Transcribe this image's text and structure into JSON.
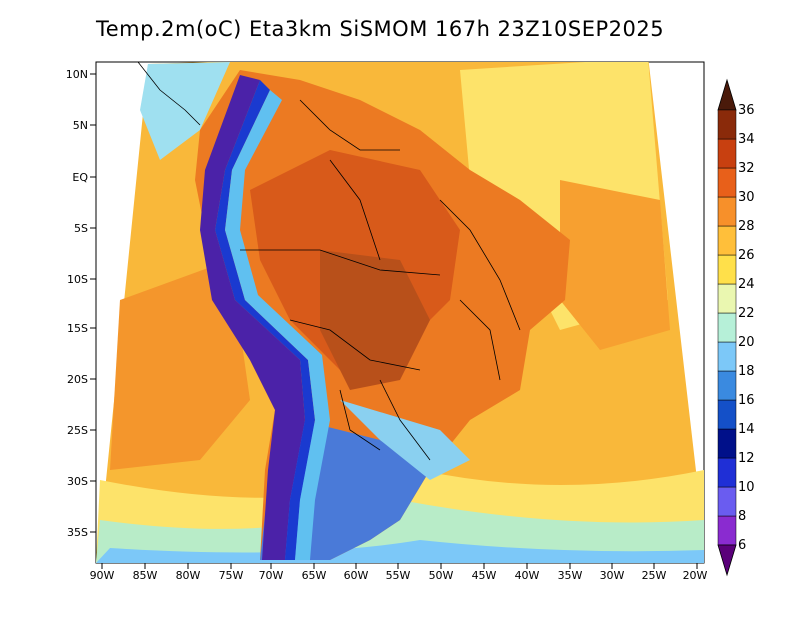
{
  "title": "Temp.2m(oC) Eta3km SiSMOM 167h 23Z10SEP2025",
  "axes": {
    "lat_ticks": [
      "10N",
      "5N",
      "EQ",
      "5S",
      "10S",
      "15S",
      "20S",
      "25S",
      "30S",
      "35S"
    ],
    "lon_ticks": [
      "90W",
      "85W",
      "80W",
      "75W",
      "70W",
      "65W",
      "60W",
      "55W",
      "50W",
      "45W",
      "40W",
      "35W",
      "30W",
      "25W",
      "20W"
    ]
  },
  "colorbar": {
    "labels": [
      "6",
      "8",
      "10",
      "12",
      "14",
      "16",
      "18",
      "20",
      "22",
      "24",
      "26",
      "28",
      "30",
      "32",
      "34",
      "36"
    ],
    "colors": [
      "#5a007a",
      "#8a2bd0",
      "#6a5cf0",
      "#1f2fd6",
      "#00108a",
      "#1450c8",
      "#3a8ae0",
      "#7cc8f8",
      "#b6f0d8",
      "#eaf7b0",
      "#ffe04a",
      "#ffbf3a",
      "#f7902a",
      "#e8601a",
      "#c84010",
      "#8a2a0a",
      "#4a1a0a"
    ]
  },
  "colors": {
    "ocean_warm": "#fbbd3a",
    "ocean_hot": "#f6a02c",
    "land_hot": "#e46a1e",
    "andes_cold": "#3a1a8a",
    "south_cold": "#4060d8"
  }
}
